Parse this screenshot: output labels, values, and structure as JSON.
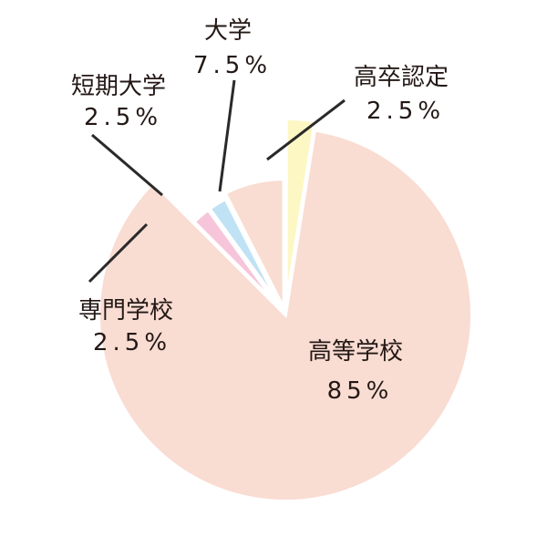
{
  "chart_data": {
    "type": "pie",
    "title": "",
    "unit": "%",
    "slices": [
      {
        "name": "高卒認定",
        "value": 2.5,
        "label": "2.5%",
        "color": "#fdf7c4"
      },
      {
        "name": "高等学校",
        "value": 85,
        "label": "85%",
        "color": "#f9dcd2"
      },
      {
        "name": "専門学校",
        "value": 2.5,
        "label": "2.5%",
        "color": "#f7c5da"
      },
      {
        "name": "短期大学",
        "value": 2.5,
        "label": "2.5%",
        "color": "#bfe2f5"
      },
      {
        "name": "大学",
        "value": 7.5,
        "label": "7.5%",
        "color": "#f9dcd2"
      }
    ],
    "start": "12 o'clock",
    "direction": "clockwise",
    "legend": "none",
    "labels": "outside with leader lines, inside for largest slice"
  }
}
